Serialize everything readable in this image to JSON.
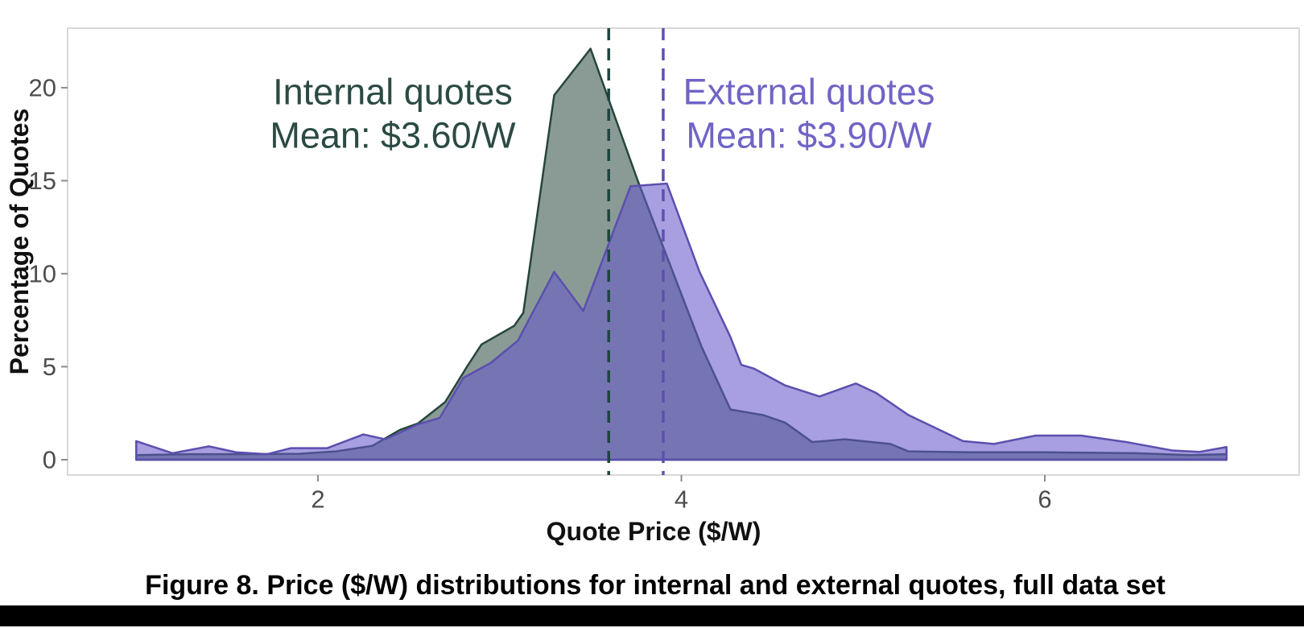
{
  "figure": {
    "caption": "Figure 8. Price ($/W) distributions for internal and external quotes, full data set"
  },
  "chart_data": {
    "type": "area",
    "title": "",
    "xlabel": "Quote Price ($/W)",
    "ylabel": "Percentage of Quotes",
    "x_tick_labels": [
      "2",
      "4",
      "6"
    ],
    "x_tick_values": [
      2,
      4,
      6
    ],
    "y_tick_labels": [
      "20",
      "15",
      "10",
      "5",
      "0"
    ],
    "y_tick_values": [
      20,
      15,
      10,
      5,
      0
    ],
    "xlim": [
      0.62,
      7.4
    ],
    "ylim": [
      -0.95,
      23.2
    ],
    "grid": false,
    "legend_position": "annotations-inside",
    "panel_border_color": "#d8d8d8",
    "tick_color": "#8c8c8c",
    "series": [
      {
        "name": "Internal quotes",
        "mean_label": "Mean: $3.60/W",
        "mean": 3.6,
        "fill": "#36524a",
        "fill_opacity": 0.58,
        "stroke": "#26453d",
        "mean_line_color": "#1d453e",
        "text_color": "#2b4a43",
        "points": [
          [
            1.0,
            0.25
          ],
          [
            1.3,
            0.3
          ],
          [
            1.6,
            0.3
          ],
          [
            1.9,
            0.32
          ],
          [
            2.1,
            0.45
          ],
          [
            2.3,
            0.75
          ],
          [
            2.45,
            1.6
          ],
          [
            2.55,
            1.95
          ],
          [
            2.7,
            3.1
          ],
          [
            2.82,
            5.0
          ],
          [
            2.9,
            6.2
          ],
          [
            3.08,
            7.2
          ],
          [
            3.13,
            7.9
          ],
          [
            3.3,
            19.6
          ],
          [
            3.5,
            22.1
          ],
          [
            3.76,
            15.0
          ],
          [
            4.11,
            6.1
          ],
          [
            4.27,
            2.7
          ],
          [
            4.45,
            2.4
          ],
          [
            4.57,
            2.0
          ],
          [
            4.72,
            0.95
          ],
          [
            4.9,
            1.1
          ],
          [
            5.15,
            0.85
          ],
          [
            5.25,
            0.45
          ],
          [
            5.6,
            0.4
          ],
          [
            6.0,
            0.4
          ],
          [
            6.5,
            0.35
          ],
          [
            6.8,
            0.25
          ],
          [
            7.0,
            0.3
          ]
        ]
      },
      {
        "name": "External quotes",
        "mean_label": "Mean: $3.90/W",
        "mean": 3.9,
        "fill": "#685ac8",
        "fill_opacity": 0.58,
        "stroke": "#5b4fae",
        "mean_line_color": "#5d50b4",
        "text_color": "#7064c6",
        "points": [
          [
            1.0,
            1.0
          ],
          [
            1.2,
            0.35
          ],
          [
            1.4,
            0.72
          ],
          [
            1.55,
            0.4
          ],
          [
            1.72,
            0.3
          ],
          [
            1.85,
            0.62
          ],
          [
            2.05,
            0.62
          ],
          [
            2.25,
            1.36
          ],
          [
            2.37,
            1.1
          ],
          [
            2.45,
            1.45
          ],
          [
            2.55,
            1.9
          ],
          [
            2.67,
            2.25
          ],
          [
            2.8,
            4.4
          ],
          [
            2.95,
            5.2
          ],
          [
            3.1,
            6.4
          ],
          [
            3.3,
            10.1
          ],
          [
            3.46,
            8.0
          ],
          [
            3.72,
            14.7
          ],
          [
            3.92,
            14.85
          ],
          [
            4.1,
            10.1
          ],
          [
            4.27,
            6.6
          ],
          [
            4.33,
            5.1
          ],
          [
            4.4,
            4.9
          ],
          [
            4.57,
            4.0
          ],
          [
            4.76,
            3.4
          ],
          [
            4.96,
            4.1
          ],
          [
            5.07,
            3.6
          ],
          [
            5.25,
            2.4
          ],
          [
            5.55,
            1.0
          ],
          [
            5.72,
            0.85
          ],
          [
            5.95,
            1.3
          ],
          [
            6.2,
            1.3
          ],
          [
            6.45,
            0.95
          ],
          [
            6.7,
            0.5
          ],
          [
            6.85,
            0.42
          ],
          [
            7.0,
            0.68
          ]
        ]
      }
    ]
  }
}
